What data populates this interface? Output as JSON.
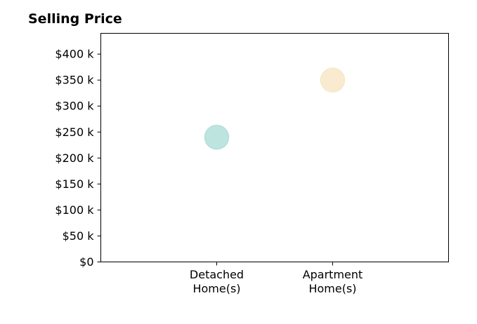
{
  "chart_data": {
    "type": "scatter",
    "title": "Selling Price",
    "xlabel": "",
    "ylabel": "",
    "categories": [
      [
        "Detached",
        "Home(s)"
      ],
      [
        "Apartment",
        "Home(s)"
      ]
    ],
    "series": [
      {
        "category": 0,
        "y": 240000,
        "color": "#b3dfda"
      },
      {
        "category": 1,
        "y": 350000,
        "color": "#f7e8c8"
      }
    ],
    "ylim": [
      0,
      440000
    ],
    "xlim": [
      0,
      3
    ],
    "yticks": [
      {
        "value": 0,
        "label": "$0"
      },
      {
        "value": 50000,
        "label": "$50 k"
      },
      {
        "value": 100000,
        "label": "$100 k"
      },
      {
        "value": 150000,
        "label": "$150 k"
      },
      {
        "value": 200000,
        "label": "$200 k"
      },
      {
        "value": 250000,
        "label": "$250 k"
      },
      {
        "value": 300000,
        "label": "$300 k"
      },
      {
        "value": 350000,
        "label": "$350 k"
      },
      {
        "value": 400000,
        "label": "$400 k"
      }
    ],
    "grid": false,
    "legend": "none"
  }
}
